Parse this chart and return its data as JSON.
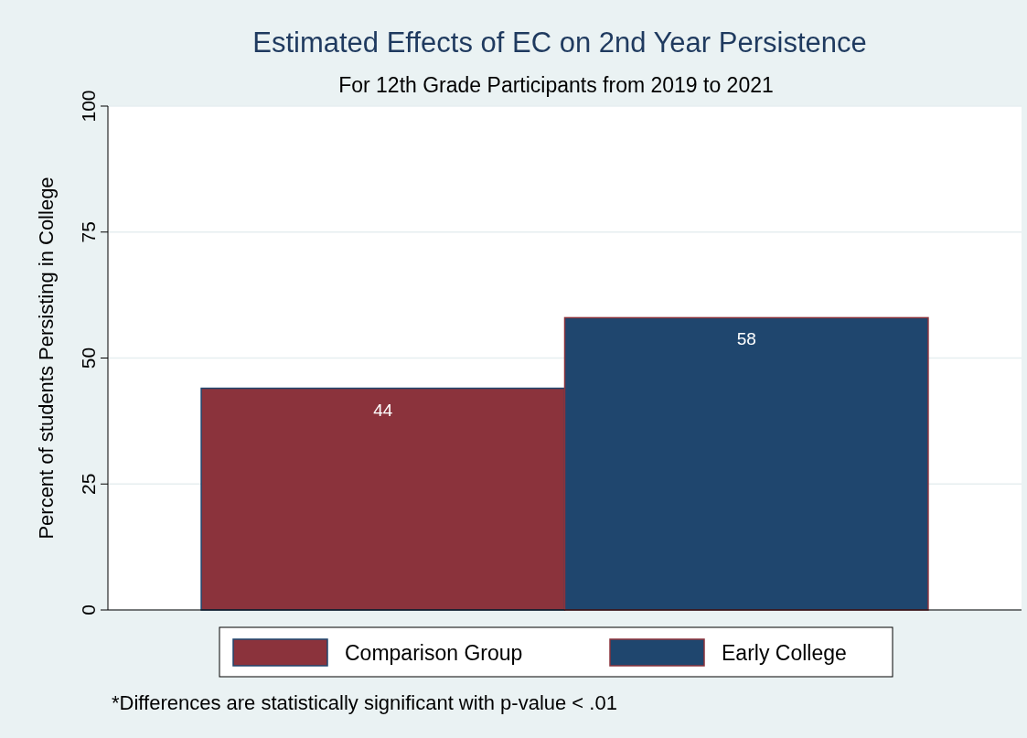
{
  "chart_data": {
    "type": "bar",
    "title": "Estimated Effects of EC on 2nd Year Persistence",
    "subtitle": "For 12th Grade Participants from 2019 to 2021",
    "ylabel": "Percent of students Persisting in College",
    "categories": [
      null
    ],
    "series": [
      {
        "name": "Comparison Group",
        "color": "#8b333c",
        "values": [
          44
        ]
      },
      {
        "name": "Early College",
        "color": "#1f466e",
        "values": [
          58
        ]
      }
    ],
    "ylim": [
      0,
      100
    ],
    "yticks": [
      0,
      25,
      50,
      75,
      100
    ],
    "grid": "y",
    "legend": "bottom",
    "data_labels": true,
    "annotations": [
      "*Differences are statistically significant with p-value < .01"
    ]
  }
}
